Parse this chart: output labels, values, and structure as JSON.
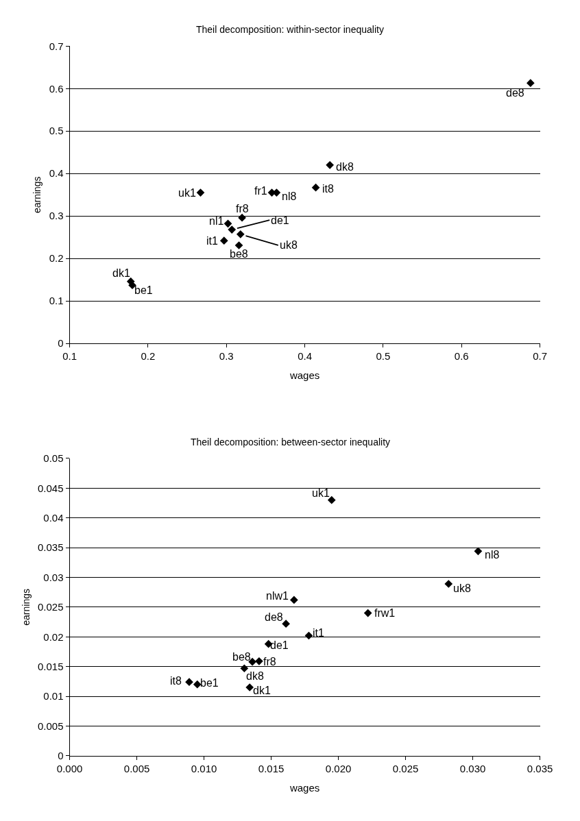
{
  "chart_data": [
    {
      "type": "scatter",
      "title": "Theil decomposition: within-sector inequality",
      "xlabel": "wages",
      "ylabel": "earnings",
      "xlim": [
        0.1,
        0.7
      ],
      "xticks": [
        0.1,
        0.2,
        0.3,
        0.4,
        0.5,
        0.6,
        0.7
      ],
      "ylim": [
        0,
        0.7
      ],
      "yticks": [
        0,
        0.1,
        0.2,
        0.3,
        0.4,
        0.5,
        0.6,
        0.7
      ],
      "grid": "y",
      "marker": "diamond",
      "series": [
        {
          "color": "#000000",
          "x": [
            0.688,
            0.432,
            0.414,
            0.267,
            0.358,
            0.364,
            0.32,
            0.302,
            0.307,
            0.318,
            0.297,
            0.316,
            0.178,
            0.18
          ],
          "values": [
            0.613,
            0.42,
            0.367,
            0.355,
            0.355,
            0.355,
            0.296,
            0.282,
            0.268,
            0.257,
            0.242,
            0.231,
            0.146,
            0.137
          ]
        }
      ],
      "annotations": [
        {
          "text": "de8",
          "x": 0.688,
          "y": 0.613
        },
        {
          "text": "dk8",
          "x": 0.432,
          "y": 0.42
        },
        {
          "text": "it8",
          "x": 0.414,
          "y": 0.367
        },
        {
          "text": "uk1",
          "x": 0.267,
          "y": 0.355
        },
        {
          "text": "fr1",
          "x": 0.358,
          "y": 0.355
        },
        {
          "text": "nl8",
          "x": 0.364,
          "y": 0.355
        },
        {
          "text": "fr8",
          "x": 0.32,
          "y": 0.296
        },
        {
          "text": "nl1",
          "x": 0.302,
          "y": 0.282
        },
        {
          "text": "de1",
          "x": 0.307,
          "y": 0.268
        },
        {
          "text": "uk8",
          "x": 0.318,
          "y": 0.257
        },
        {
          "text": "it1",
          "x": 0.297,
          "y": 0.242
        },
        {
          "text": "be8",
          "x": 0.316,
          "y": 0.231
        },
        {
          "text": "dk1",
          "x": 0.178,
          "y": 0.146
        },
        {
          "text": "be1",
          "x": 0.18,
          "y": 0.137
        }
      ]
    },
    {
      "type": "scatter",
      "title": "Theil decomposition: between-sector inequality",
      "xlabel": "wages",
      "ylabel": "earnings",
      "xlim": [
        0,
        0.035
      ],
      "xticks": [
        {
          "value": 0,
          "label": "0.000"
        },
        {
          "value": 0.005,
          "label": "0.005"
        },
        {
          "value": 0.01,
          "label": "0.010"
        },
        {
          "value": 0.015,
          "label": "0.015"
        },
        {
          "value": 0.02,
          "label": "0.020"
        },
        {
          "value": 0.025,
          "label": "0.025"
        },
        {
          "value": 0.03,
          "label": "0.030"
        },
        {
          "value": 0.035,
          "label": "0.035"
        }
      ],
      "ylim": [
        0,
        0.05
      ],
      "yticks": [
        0,
        0.005,
        0.01,
        0.015,
        0.02,
        0.025,
        0.03,
        0.035,
        0.04,
        0.045,
        0.05
      ],
      "grid": "y",
      "marker": "diamond",
      "series": [
        {
          "color": "#000000",
          "x": [
            0.0195,
            0.0304,
            0.0282,
            0.0167,
            0.0222,
            0.0161,
            0.0178,
            0.0148,
            0.0136,
            0.0141,
            0.013,
            0.0089,
            0.0095,
            0.0134
          ],
          "values": [
            0.043,
            0.0344,
            0.0289,
            0.0262,
            0.024,
            0.0222,
            0.0202,
            0.0188,
            0.0158,
            0.0159,
            0.0147,
            0.0124,
            0.012,
            0.0115
          ]
        }
      ],
      "annotations": [
        {
          "text": "uk1",
          "x": 0.0195,
          "y": 0.043
        },
        {
          "text": "nl8",
          "x": 0.0304,
          "y": 0.0344
        },
        {
          "text": "uk8",
          "x": 0.0282,
          "y": 0.0289
        },
        {
          "text": "nlw1",
          "x": 0.0167,
          "y": 0.0262
        },
        {
          "text": "frw1",
          "x": 0.0222,
          "y": 0.024
        },
        {
          "text": "de8",
          "x": 0.0161,
          "y": 0.0222
        },
        {
          "text": "it1",
          "x": 0.0178,
          "y": 0.0202
        },
        {
          "text": "de1",
          "x": 0.0148,
          "y": 0.0188
        },
        {
          "text": "be8",
          "x": 0.0136,
          "y": 0.0158
        },
        {
          "text": "fr8",
          "x": 0.0141,
          "y": 0.0159
        },
        {
          "text": "dk8",
          "x": 0.013,
          "y": 0.0147
        },
        {
          "text": "it8",
          "x": 0.0089,
          "y": 0.0124
        },
        {
          "text": "be1",
          "x": 0.0095,
          "y": 0.012
        },
        {
          "text": "dk1",
          "x": 0.0134,
          "y": 0.0115
        }
      ]
    }
  ]
}
